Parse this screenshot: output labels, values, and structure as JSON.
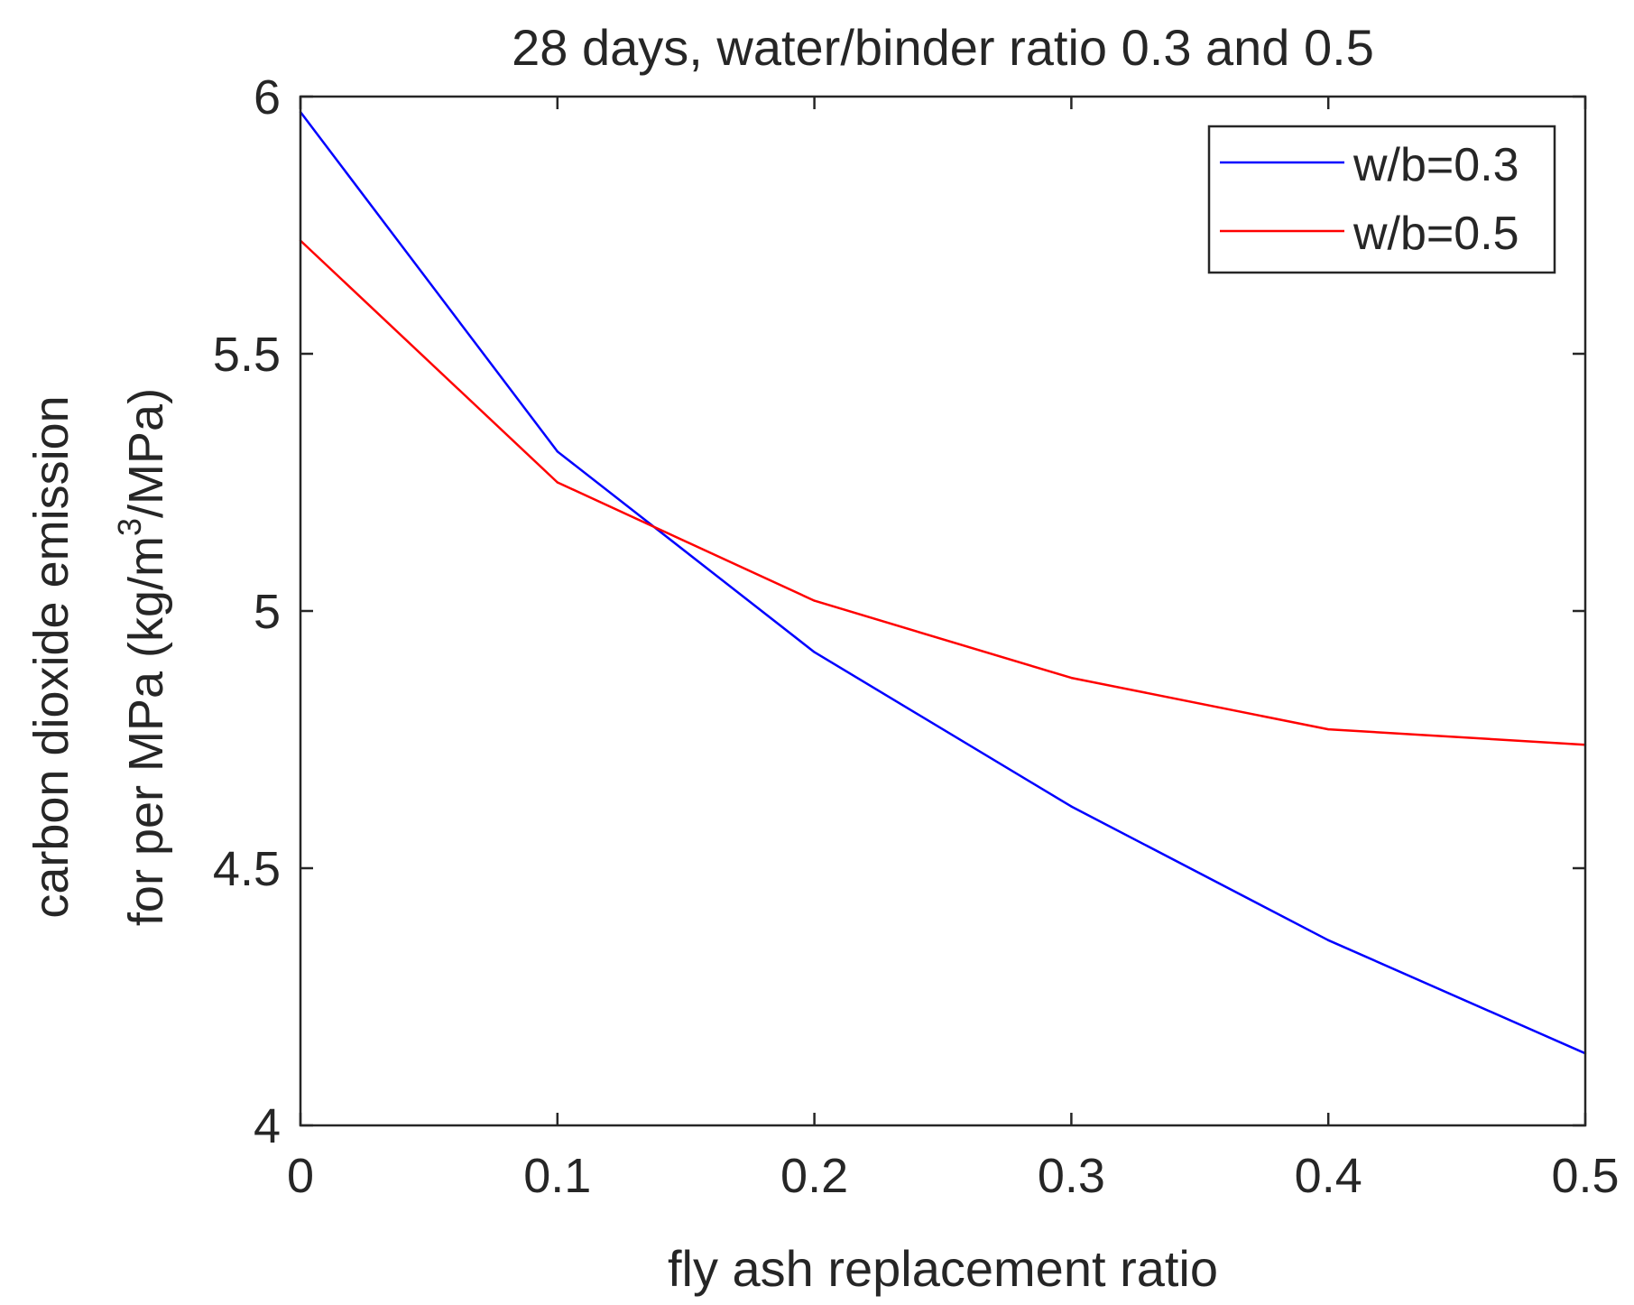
{
  "chart_data": {
    "type": "line",
    "title": "28 days, water/binder ratio 0.3 and 0.5",
    "xlabel": "fly ash replacement ratio",
    "ylabel_line1": "carbon dioxide emission",
    "ylabel_line2_prefix": "for per MPa (kg/m",
    "ylabel_line2_sup": "3",
    "ylabel_line2_suffix": "/MPa)",
    "xlim": [
      0,
      0.5
    ],
    "ylim": [
      4,
      6
    ],
    "xticks": [
      0,
      0.1,
      0.2,
      0.3,
      0.4,
      0.5
    ],
    "xtick_labels": [
      "0",
      "0.1",
      "0.2",
      "0.3",
      "0.4",
      "0.5"
    ],
    "yticks": [
      4,
      4.5,
      5,
      5.5,
      6
    ],
    "ytick_labels": [
      "4",
      "4.5",
      "5",
      "5.5",
      "6"
    ],
    "grid": false,
    "legend_location": "top-right",
    "x": [
      0,
      0.1,
      0.2,
      0.3,
      0.4,
      0.5
    ],
    "series": [
      {
        "name": "w/b=0.3",
        "color": "#0000ff",
        "values": [
          5.97,
          5.31,
          4.92,
          4.62,
          4.36,
          4.14
        ]
      },
      {
        "name": "w/b=0.5",
        "color": "#ff0000",
        "values": [
          5.72,
          5.25,
          5.02,
          4.87,
          4.77,
          4.74
        ]
      }
    ]
  }
}
